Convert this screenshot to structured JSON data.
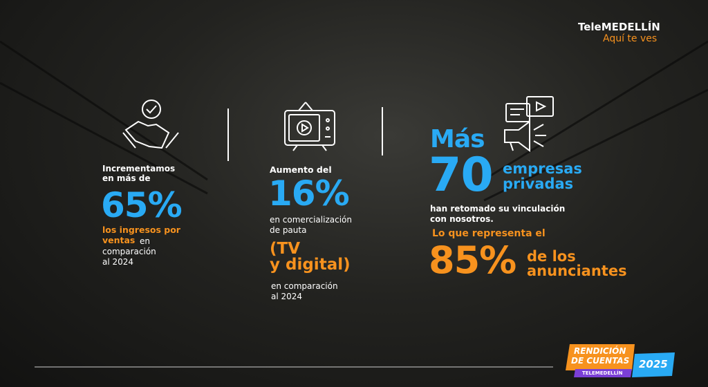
{
  "header": {
    "brand": "TeleMEDELLÍN",
    "tagline": "Aquí te ves"
  },
  "stats": [
    {
      "intro": [
        "Incrementamos",
        "en más de"
      ],
      "figure": "65%",
      "highlight": [
        "los ingresos por",
        "ventas"
      ],
      "rest": [
        "en",
        "comparación",
        "al 2024"
      ]
    },
    {
      "intro": "Aumento del",
      "figure": "16%",
      "text": [
        "en comercialización",
        "de pauta"
      ],
      "highlight": [
        "(TV",
        "y digital)"
      ],
      "rest": [
        "en comparación",
        "al 2024"
      ]
    },
    {
      "pre": "Más",
      "figure": "70",
      "label": [
        "empresas",
        "privadas"
      ],
      "text": [
        "han retomado su vinculación",
        "con nosotros."
      ],
      "sub": "Lo que representa el",
      "figure2": "85%",
      "label2": [
        "de los",
        "anunciantes"
      ]
    }
  ],
  "badge": {
    "title": [
      "RENDICIÓN",
      "DE CUENTAS"
    ],
    "brand": "TELEMEDELLÍN",
    "year": "2025"
  }
}
